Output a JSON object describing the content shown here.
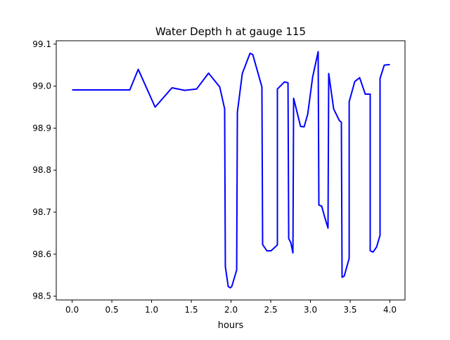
{
  "chart_data": {
    "type": "line",
    "title": "Water Depth h at gauge 115",
    "xlabel": "hours",
    "ylabel": "",
    "xlim": [
      -0.2,
      4.19
    ],
    "ylim": [
      98.491,
      99.108
    ],
    "xticks": [
      0.0,
      0.5,
      1.0,
      1.5,
      2.0,
      2.5,
      3.0,
      3.5,
      4.0
    ],
    "xtick_labels": [
      "0.0",
      "0.5",
      "1.0",
      "1.5",
      "2.0",
      "2.5",
      "3.0",
      "3.5",
      "4.0"
    ],
    "yticks": [
      98.5,
      98.6,
      98.7,
      98.8,
      98.9,
      99.0,
      99.1
    ],
    "ytick_labels": [
      "98.5",
      "98.6",
      "98.7",
      "98.8",
      "98.9",
      "99.0",
      "99.1"
    ],
    "grid": false,
    "series": [
      {
        "name": "h",
        "color": "#0000ff",
        "x": [
          0.0,
          0.726,
          0.832,
          1.044,
          1.257,
          1.416,
          1.566,
          1.717,
          1.858,
          1.92,
          1.929,
          1.965,
          1.991,
          2.009,
          2.071,
          2.08,
          2.142,
          2.239,
          2.274,
          2.389,
          2.398,
          2.451,
          2.504,
          2.584,
          2.584,
          2.673,
          2.717,
          2.726,
          2.752,
          2.779,
          2.788,
          2.876,
          2.92,
          2.965,
          3.027,
          3.097,
          3.106,
          3.142,
          3.177,
          3.221,
          3.23,
          3.292,
          3.363,
          3.389,
          3.398,
          3.425,
          3.487,
          3.487,
          3.558,
          3.619,
          3.69,
          3.752,
          3.752,
          3.788,
          3.832,
          3.876,
          3.876,
          3.929,
          3.973,
          4.0
        ],
        "y": [
          98.991,
          98.991,
          99.04,
          98.95,
          98.996,
          98.99,
          98.993,
          99.031,
          98.998,
          98.946,
          98.57,
          98.523,
          98.52,
          98.523,
          98.562,
          98.938,
          99.03,
          99.078,
          99.075,
          98.998,
          98.623,
          98.608,
          98.608,
          98.622,
          98.993,
          99.01,
          99.008,
          98.637,
          98.628,
          98.603,
          98.971,
          98.904,
          98.903,
          98.933,
          99.021,
          99.082,
          98.717,
          98.714,
          98.69,
          98.662,
          99.03,
          98.946,
          98.918,
          98.914,
          98.545,
          98.548,
          98.59,
          98.963,
          99.011,
          99.02,
          98.981,
          98.981,
          98.608,
          98.605,
          98.617,
          98.645,
          99.018,
          99.05,
          99.051,
          99.051
        ]
      }
    ]
  }
}
